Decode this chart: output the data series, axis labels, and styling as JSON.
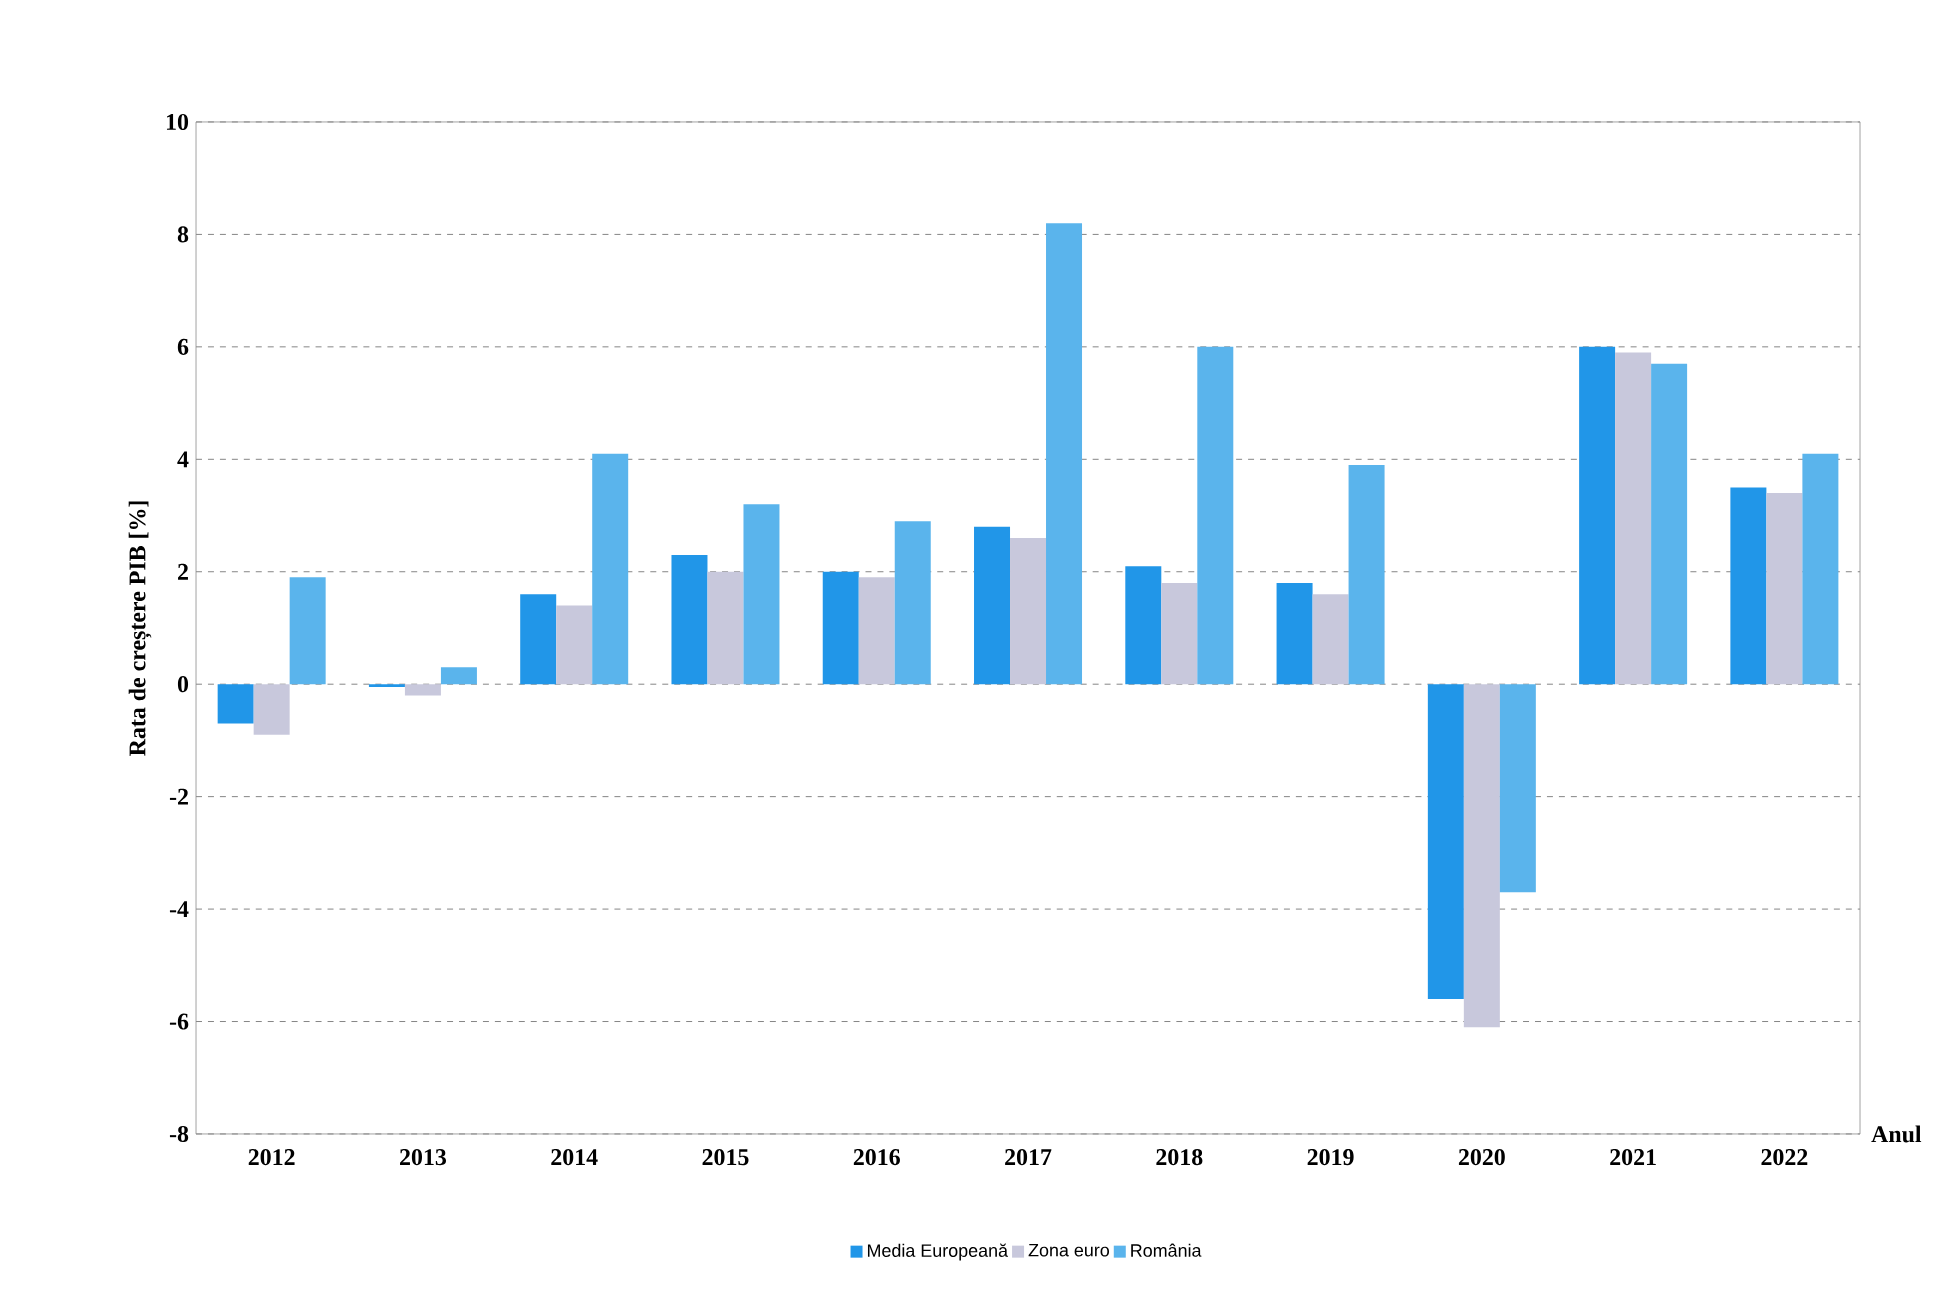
{
  "chart_data": {
    "type": "bar",
    "xlabel": "Anul",
    "ylabel": "Rata de creștere PIB [%]",
    "categories": [
      "2012",
      "2013",
      "2014",
      "2015",
      "2016",
      "2017",
      "2018",
      "2019",
      "2020",
      "2021",
      "2022"
    ],
    "series": [
      {
        "name": "Media Europeană",
        "color": "#2196e8",
        "values": [
          -0.7,
          -0.05,
          1.6,
          2.3,
          2.0,
          2.8,
          2.1,
          1.8,
          -5.6,
          6.0,
          3.5
        ]
      },
      {
        "name": "Zona euro",
        "color": "#c8c8dc",
        "values": [
          -0.9,
          -0.2,
          1.4,
          2.0,
          1.9,
          2.6,
          1.8,
          1.6,
          -6.1,
          5.9,
          3.4
        ]
      },
      {
        "name": "România",
        "color": "#5ab4ec",
        "values": [
          1.9,
          0.3,
          4.1,
          3.2,
          2.9,
          8.2,
          6.0,
          3.9,
          -3.7,
          5.7,
          4.1
        ]
      }
    ],
    "ylim": [
      -8,
      10
    ],
    "yticks": [
      -8,
      -6,
      -4,
      -2,
      0,
      2,
      4,
      6,
      8,
      10
    ],
    "grid": "y",
    "legend": "bottom"
  }
}
